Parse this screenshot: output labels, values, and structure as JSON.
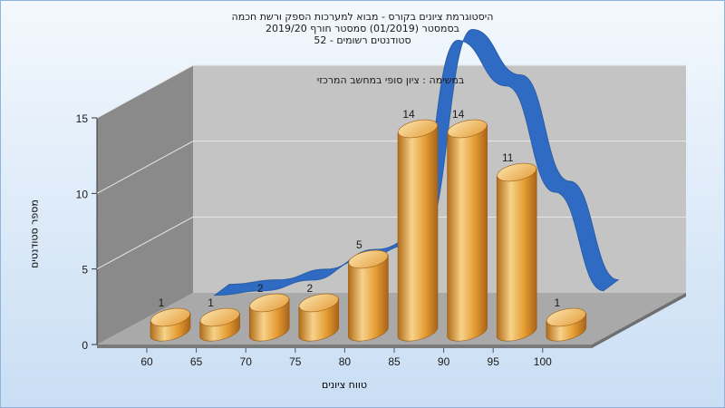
{
  "chart_data": {
    "type": "bar",
    "title_lines": [
      "היסטוגרמת ציונים בקורס - מבוא למערכות הספק ורשת חכמה",
      "בסמסטר  (01/2019)  סמסטר חורף 2019/20",
      "סטודנטים רשומים - 52"
    ],
    "annotation": "במשימה : ציון סופי במחשב המרכזי",
    "ylabel": "מספר סטודנטים",
    "xlabel": "טווח ציונים",
    "categories": [
      "60",
      "65",
      "70",
      "75",
      "80",
      "85",
      "90",
      "95",
      "100"
    ],
    "values": [
      1,
      1,
      2,
      2,
      5,
      14,
      14,
      11,
      1
    ],
    "y_ticks": [
      "0",
      "5",
      "10",
      "15"
    ],
    "ylim": [
      0,
      15
    ],
    "trend_curve": [
      0.2,
      0.5,
      1.2,
      2.5,
      3.5,
      17,
      14,
      7,
      0.5
    ],
    "grid": true,
    "colors": {
      "bar": "#e8a23a",
      "bar_light": "#f7d28a",
      "bar_dark": "#b06c18",
      "trend": "#2f6bc2",
      "wall": "#c4c4c4",
      "side_wall": "#8a8a8a",
      "floor": "#a9a9a9"
    }
  }
}
